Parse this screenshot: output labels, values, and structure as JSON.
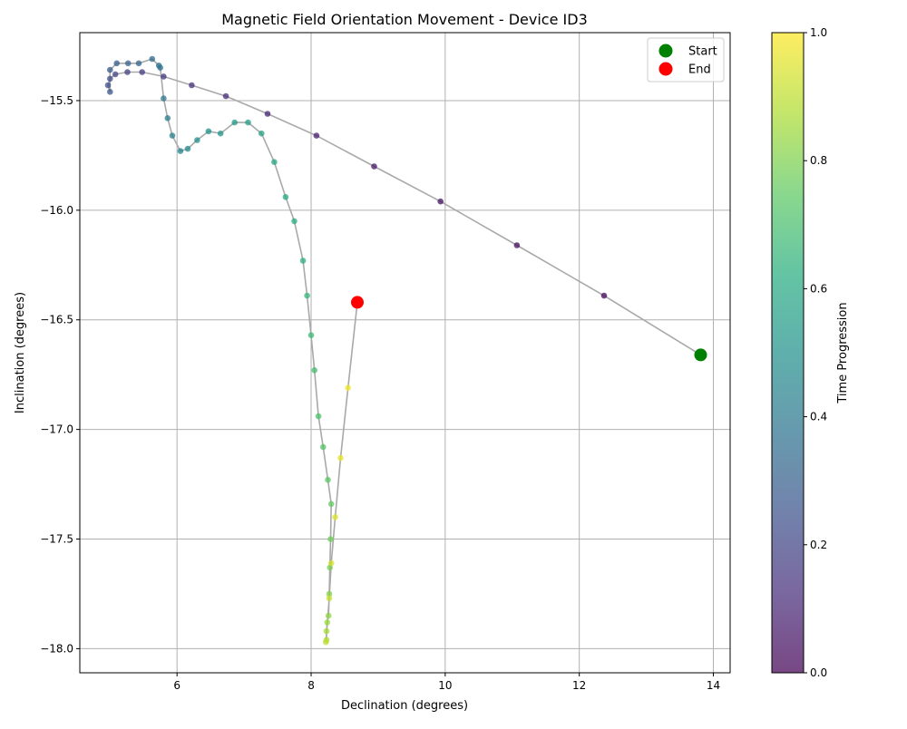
{
  "chart_data": {
    "type": "scatter",
    "title": "Magnetic Field Orientation Movement - Device ID3",
    "xlabel": "Declination (degrees)",
    "ylabel": "Inclination (degrees)",
    "xlim": [
      4.55,
      14.25
    ],
    "ylim": [
      -18.11,
      -15.19
    ],
    "xticks": [
      6,
      8,
      10,
      12,
      14
    ],
    "yticks": [
      -18.0,
      -17.5,
      -17.0,
      -16.5,
      -16.0,
      -15.5
    ],
    "xtick_labels": [
      "6",
      "8",
      "10",
      "12",
      "14"
    ],
    "ytick_labels": [
      "−18.0",
      "−17.5",
      "−17.0",
      "−16.5",
      "−16.0",
      "−15.5"
    ],
    "grid": true,
    "legend_position": "top-right",
    "line_color": "#a9a9a9",
    "colormap": "viridis",
    "colorbar": {
      "label": "Time Progression",
      "range": [
        0.0,
        1.0
      ],
      "ticks": [
        "0.0",
        "0.2",
        "0.4",
        "0.6",
        "0.8",
        "1.0"
      ]
    },
    "series": [
      {
        "name": "path",
        "points": [
          [
            13.81,
            -16.66
          ],
          [
            12.37,
            -16.39
          ],
          [
            11.07,
            -16.16
          ],
          [
            9.93,
            -15.96
          ],
          [
            8.94,
            -15.8
          ],
          [
            8.08,
            -15.66
          ],
          [
            7.35,
            -15.56
          ],
          [
            6.73,
            -15.48
          ],
          [
            6.22,
            -15.43
          ],
          [
            5.8,
            -15.39
          ],
          [
            5.48,
            -15.37
          ],
          [
            5.26,
            -15.37
          ],
          [
            5.08,
            -15.38
          ],
          [
            5.0,
            -15.4
          ],
          [
            4.97,
            -15.43
          ],
          [
            5.0,
            -15.46
          ],
          [
            5.0,
            -15.36
          ],
          [
            5.1,
            -15.33
          ],
          [
            5.27,
            -15.33
          ],
          [
            5.43,
            -15.33
          ],
          [
            5.63,
            -15.31
          ],
          [
            5.73,
            -15.34
          ],
          [
            5.75,
            -15.35
          ],
          [
            5.8,
            -15.49
          ],
          [
            5.86,
            -15.58
          ],
          [
            5.93,
            -15.66
          ],
          [
            6.05,
            -15.73
          ],
          [
            6.16,
            -15.72
          ],
          [
            6.3,
            -15.68
          ],
          [
            6.47,
            -15.64
          ],
          [
            6.65,
            -15.65
          ],
          [
            6.86,
            -15.6
          ],
          [
            7.06,
            -15.6
          ],
          [
            7.26,
            -15.65
          ],
          [
            7.45,
            -15.78
          ],
          [
            7.62,
            -15.94
          ],
          [
            7.75,
            -16.05
          ],
          [
            7.88,
            -16.23
          ],
          [
            7.94,
            -16.39
          ],
          [
            8.0,
            -16.57
          ],
          [
            8.05,
            -16.73
          ],
          [
            8.11,
            -16.94
          ],
          [
            8.18,
            -17.08
          ],
          [
            8.25,
            -17.23
          ],
          [
            8.3,
            -17.34
          ],
          [
            8.29,
            -17.5
          ],
          [
            8.28,
            -17.63
          ],
          [
            8.27,
            -17.75
          ],
          [
            8.26,
            -17.85
          ],
          [
            8.24,
            -17.88
          ],
          [
            8.23,
            -17.92
          ],
          [
            8.23,
            -17.96
          ],
          [
            8.22,
            -17.97
          ],
          [
            8.27,
            -17.77
          ],
          [
            8.3,
            -17.61
          ],
          [
            8.36,
            -17.4
          ],
          [
            8.44,
            -17.13
          ],
          [
            8.55,
            -16.81
          ],
          [
            8.69,
            -16.42
          ]
        ]
      },
      {
        "name": "Start",
        "color": "#008000",
        "point": [
          13.81,
          -16.66
        ]
      },
      {
        "name": "End",
        "color": "#ff0000",
        "point": [
          8.69,
          -16.42
        ]
      }
    ]
  }
}
